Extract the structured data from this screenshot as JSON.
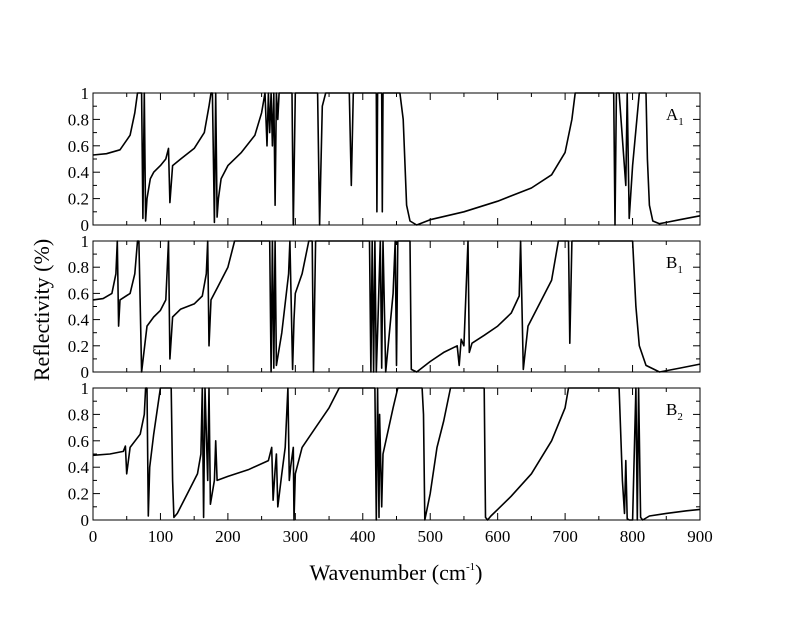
{
  "chart_data": [
    {
      "type": "line",
      "panel": "A",
      "label_main": "A",
      "label_sub": "1",
      "xlim": [
        0,
        900
      ],
      "ylim": [
        0,
        1
      ],
      "x_ticks": [
        0,
        100,
        200,
        300,
        400,
        500,
        600,
        700,
        800,
        900
      ],
      "y_ticks": [
        "0",
        "0.2",
        "0.4",
        "0.6",
        "0.8",
        "1"
      ],
      "y_tick_values": [
        0,
        0.2,
        0.4,
        0.6,
        0.8,
        1
      ],
      "series": [
        {
          "x": [
            0,
            20,
            40,
            55,
            62,
            66,
            68,
            72,
            74,
            76,
            78,
            80,
            85,
            90,
            100,
            108,
            112,
            114,
            118,
            130,
            150,
            165,
            172,
            175,
            177,
            180,
            182,
            184,
            186,
            190,
            200,
            220,
            240,
            250,
            255,
            258,
            260,
            262,
            264,
            266,
            268,
            270,
            272,
            274,
            276,
            280,
            290,
            295,
            297,
            300,
            330,
            333,
            336,
            340,
            345,
            380,
            383,
            386,
            420,
            421,
            422,
            428,
            429,
            430,
            455,
            460,
            465,
            470,
            480,
            500,
            550,
            600,
            650,
            680,
            700,
            710,
            715,
            770,
            772,
            774,
            776,
            780,
            790,
            792,
            795,
            800,
            810,
            815,
            820,
            822,
            825,
            830,
            840,
            850,
            870,
            900
          ],
          "y": [
            0.53,
            0.54,
            0.57,
            0.68,
            0.85,
            1,
            1,
            1,
            0.05,
            1,
            0.03,
            0.2,
            0.35,
            0.4,
            0.45,
            0.5,
            0.58,
            0.17,
            0.45,
            0.5,
            0.58,
            0.7,
            0.9,
            1,
            1,
            0.02,
            1,
            0.06,
            0.2,
            0.35,
            0.45,
            0.55,
            0.68,
            0.85,
            1,
            0.6,
            1,
            0.7,
            1,
            0.6,
            1,
            0.15,
            1,
            0.8,
            1,
            1,
            1,
            1,
            0,
            1,
            1,
            1,
            0,
            0.9,
            1,
            1,
            0.3,
            1,
            1,
            0.1,
            1,
            1,
            0.1,
            1,
            1,
            0.8,
            0.15,
            0.03,
            0,
            0.04,
            0.1,
            0.18,
            0.28,
            0.38,
            0.55,
            0.8,
            1,
            1,
            1,
            0,
            1,
            1,
            0.3,
            1,
            0.05,
            0.45,
            1,
            1,
            1,
            0.5,
            0.15,
            0.03,
            0.01,
            0.02,
            0.04,
            0.07
          ]
        }
      ]
    },
    {
      "type": "line",
      "panel": "B1",
      "label_main": "B",
      "label_sub": "1",
      "xlim": [
        0,
        900
      ],
      "ylim": [
        0,
        1
      ],
      "x_ticks": [
        0,
        100,
        200,
        300,
        400,
        500,
        600,
        700,
        800,
        900
      ],
      "y_ticks": [
        "0",
        "0.2",
        "0.4",
        "0.6",
        "0.8",
        "1"
      ],
      "y_tick_values": [
        0,
        0.2,
        0.4,
        0.6,
        0.8,
        1
      ],
      "series": [
        {
          "x": [
            0,
            15,
            28,
            34,
            36,
            38,
            40,
            55,
            62,
            66,
            68,
            72,
            80,
            90,
            100,
            108,
            112,
            114,
            118,
            130,
            150,
            162,
            168,
            170,
            172,
            175,
            185,
            200,
            210,
            215,
            262,
            264,
            266,
            268,
            270,
            272,
            280,
            290,
            292,
            296,
            298,
            300,
            310,
            320,
            325,
            327,
            330,
            332,
            335,
            410,
            412,
            414,
            416,
            418,
            420,
            422,
            426,
            428,
            430,
            434,
            445,
            448,
            450,
            452,
            455,
            470,
            472,
            480,
            500,
            520,
            540,
            543,
            546,
            550,
            556,
            558,
            562,
            580,
            600,
            620,
            632,
            634,
            638,
            645,
            660,
            680,
            690,
            705,
            707,
            710,
            800,
            805,
            810,
            820,
            840,
            870,
            900
          ],
          "y": [
            0.55,
            0.56,
            0.6,
            0.75,
            1,
            0.35,
            0.55,
            0.6,
            0.75,
            1,
            1,
            0,
            0.35,
            0.42,
            0.47,
            0.55,
            1,
            0.1,
            0.42,
            0.48,
            0.52,
            0.58,
            0.75,
            1,
            0.2,
            0.55,
            0.65,
            0.8,
            1,
            1,
            1,
            0,
            1,
            0.03,
            1,
            0.05,
            0.3,
            0.75,
            1,
            0.02,
            0.4,
            0.6,
            0.75,
            1,
            1,
            0,
            1,
            1,
            1,
            1,
            0,
            1,
            0,
            1,
            0,
            0.3,
            1,
            0.03,
            1,
            0,
            0.6,
            1,
            0.05,
            1,
            1,
            1,
            0.02,
            0,
            0.08,
            0.15,
            0.2,
            0.05,
            0.25,
            0.2,
            1,
            0.15,
            0.22,
            0.28,
            0.35,
            0.45,
            0.58,
            1,
            0.02,
            0.35,
            0.5,
            0.7,
            1,
            1,
            0.22,
            1,
            1,
            0.5,
            0.2,
            0.05,
            0,
            0.03,
            0.06
          ]
        }
      ]
    },
    {
      "type": "line",
      "panel": "B2",
      "label_main": "B",
      "label_sub": "2",
      "xlim": [
        0,
        900
      ],
      "ylim": [
        0,
        1
      ],
      "x_ticks": [
        0,
        100,
        200,
        300,
        400,
        500,
        600,
        700,
        800,
        900
      ],
      "y_ticks": [
        "0",
        "0.2",
        "0.4",
        "0.6",
        "0.8",
        "1"
      ],
      "y_tick_values": [
        0,
        0.2,
        0.4,
        0.6,
        0.8,
        1
      ],
      "series": [
        {
          "x": [
            0,
            25,
            45,
            48,
            50,
            55,
            70,
            76,
            78,
            80,
            82,
            84,
            90,
            100,
            116,
            118,
            120,
            125,
            140,
            155,
            160,
            162,
            164,
            166,
            170,
            172,
            174,
            180,
            182,
            184,
            200,
            230,
            260,
            265,
            267,
            270,
            272,
            274,
            280,
            285,
            289,
            291,
            293,
            297,
            298,
            300,
            310,
            330,
            350,
            365,
            418,
            420,
            422,
            424,
            425,
            428,
            430,
            445,
            452,
            488,
            490,
            492,
            500,
            510,
            520,
            530,
            580,
            582,
            585,
            590,
            600,
            620,
            650,
            680,
            700,
            705,
            780,
            785,
            788,
            790,
            792,
            795,
            800,
            805,
            807,
            809,
            812,
            815,
            825,
            850,
            880,
            900
          ],
          "y": [
            0.49,
            0.5,
            0.52,
            0.56,
            0.35,
            0.55,
            0.65,
            0.8,
            1,
            1,
            0.03,
            0.4,
            0.65,
            1,
            1,
            0.3,
            0.02,
            0.05,
            0.2,
            0.35,
            0.5,
            1,
            0.02,
            1,
            0.3,
            1,
            0.12,
            0.3,
            0.6,
            0.3,
            0.33,
            0.38,
            0.45,
            0.55,
            0.15,
            0.38,
            0.5,
            0.1,
            0.35,
            0.55,
            1,
            0.3,
            0.4,
            0.55,
            0,
            0.35,
            0.55,
            0.7,
            0.85,
            1,
            1,
            0,
            1,
            0.02,
            0.8,
            0.1,
            0.5,
            0.85,
            1,
            1,
            0.8,
            0,
            0.2,
            0.55,
            0.75,
            1,
            1,
            0.02,
            0,
            0.03,
            0.08,
            0.18,
            0.35,
            0.6,
            0.85,
            1,
            1,
            0.3,
            0.05,
            0.45,
            0.01,
            0,
            0,
            1,
            0,
            1,
            0.02,
            0,
            0.03,
            0.05,
            0.07,
            0.08
          ]
        }
      ]
    }
  ],
  "axes": {
    "ylabel": "Reflectivity (%)",
    "xlabel_main": "Wavenumber (cm",
    "xlabel_sup": "-1",
    "xlabel_close": ")"
  }
}
